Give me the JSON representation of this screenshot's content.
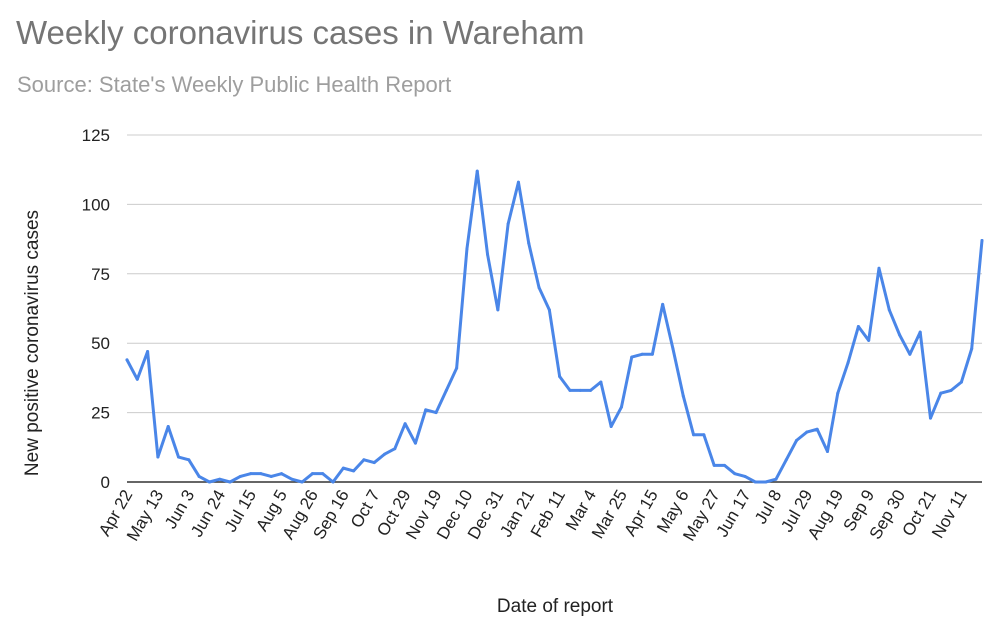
{
  "chart_data": {
    "type": "line",
    "title": "Weekly coronavirus cases in Wareham",
    "subtitle": "Source: State's Weekly Public Health Report",
    "xlabel": "Date of report",
    "ylabel": "New positive coronavirus cases",
    "ylim": [
      0,
      125
    ],
    "yticks": [
      0,
      25,
      50,
      75,
      100,
      125
    ],
    "grid": true,
    "x_tick_labels": [
      "Apr 22",
      "May 13",
      "Jun 3",
      "Jun 24",
      "Jul 15",
      "Aug 5",
      "Aug 26",
      "Sep 16",
      "Oct 7",
      "Oct 29",
      "Nov 19",
      "Dec 10",
      "Dec 31",
      "Jan 21",
      "Feb 11",
      "Mar 4",
      "Mar 25",
      "Apr 15",
      "May 6",
      "May 27",
      "Jun 17",
      "Jul 8",
      "Jul 29",
      "Aug 19",
      "Sep 9",
      "Sep 30",
      "Oct 21",
      "Nov 11"
    ],
    "series": [
      {
        "color": "#4a86e8",
        "values": [
          44,
          37,
          47,
          9,
          20,
          9,
          8,
          2,
          0,
          1,
          0,
          2,
          3,
          3,
          2,
          3,
          1,
          0,
          3,
          3,
          0,
          5,
          4,
          8,
          7,
          10,
          12,
          21,
          14,
          26,
          25,
          33,
          41,
          84,
          112,
          82,
          62,
          93,
          108,
          86,
          70,
          62,
          38,
          33,
          33,
          33,
          36,
          20,
          27,
          45,
          46,
          46,
          64,
          48,
          31,
          17,
          17,
          6,
          6,
          3,
          2,
          0,
          0,
          1,
          8,
          15,
          18,
          19,
          11,
          32,
          43,
          56,
          51,
          77,
          62,
          53,
          46,
          54,
          23,
          32,
          33,
          36,
          48,
          87
        ]
      }
    ]
  }
}
